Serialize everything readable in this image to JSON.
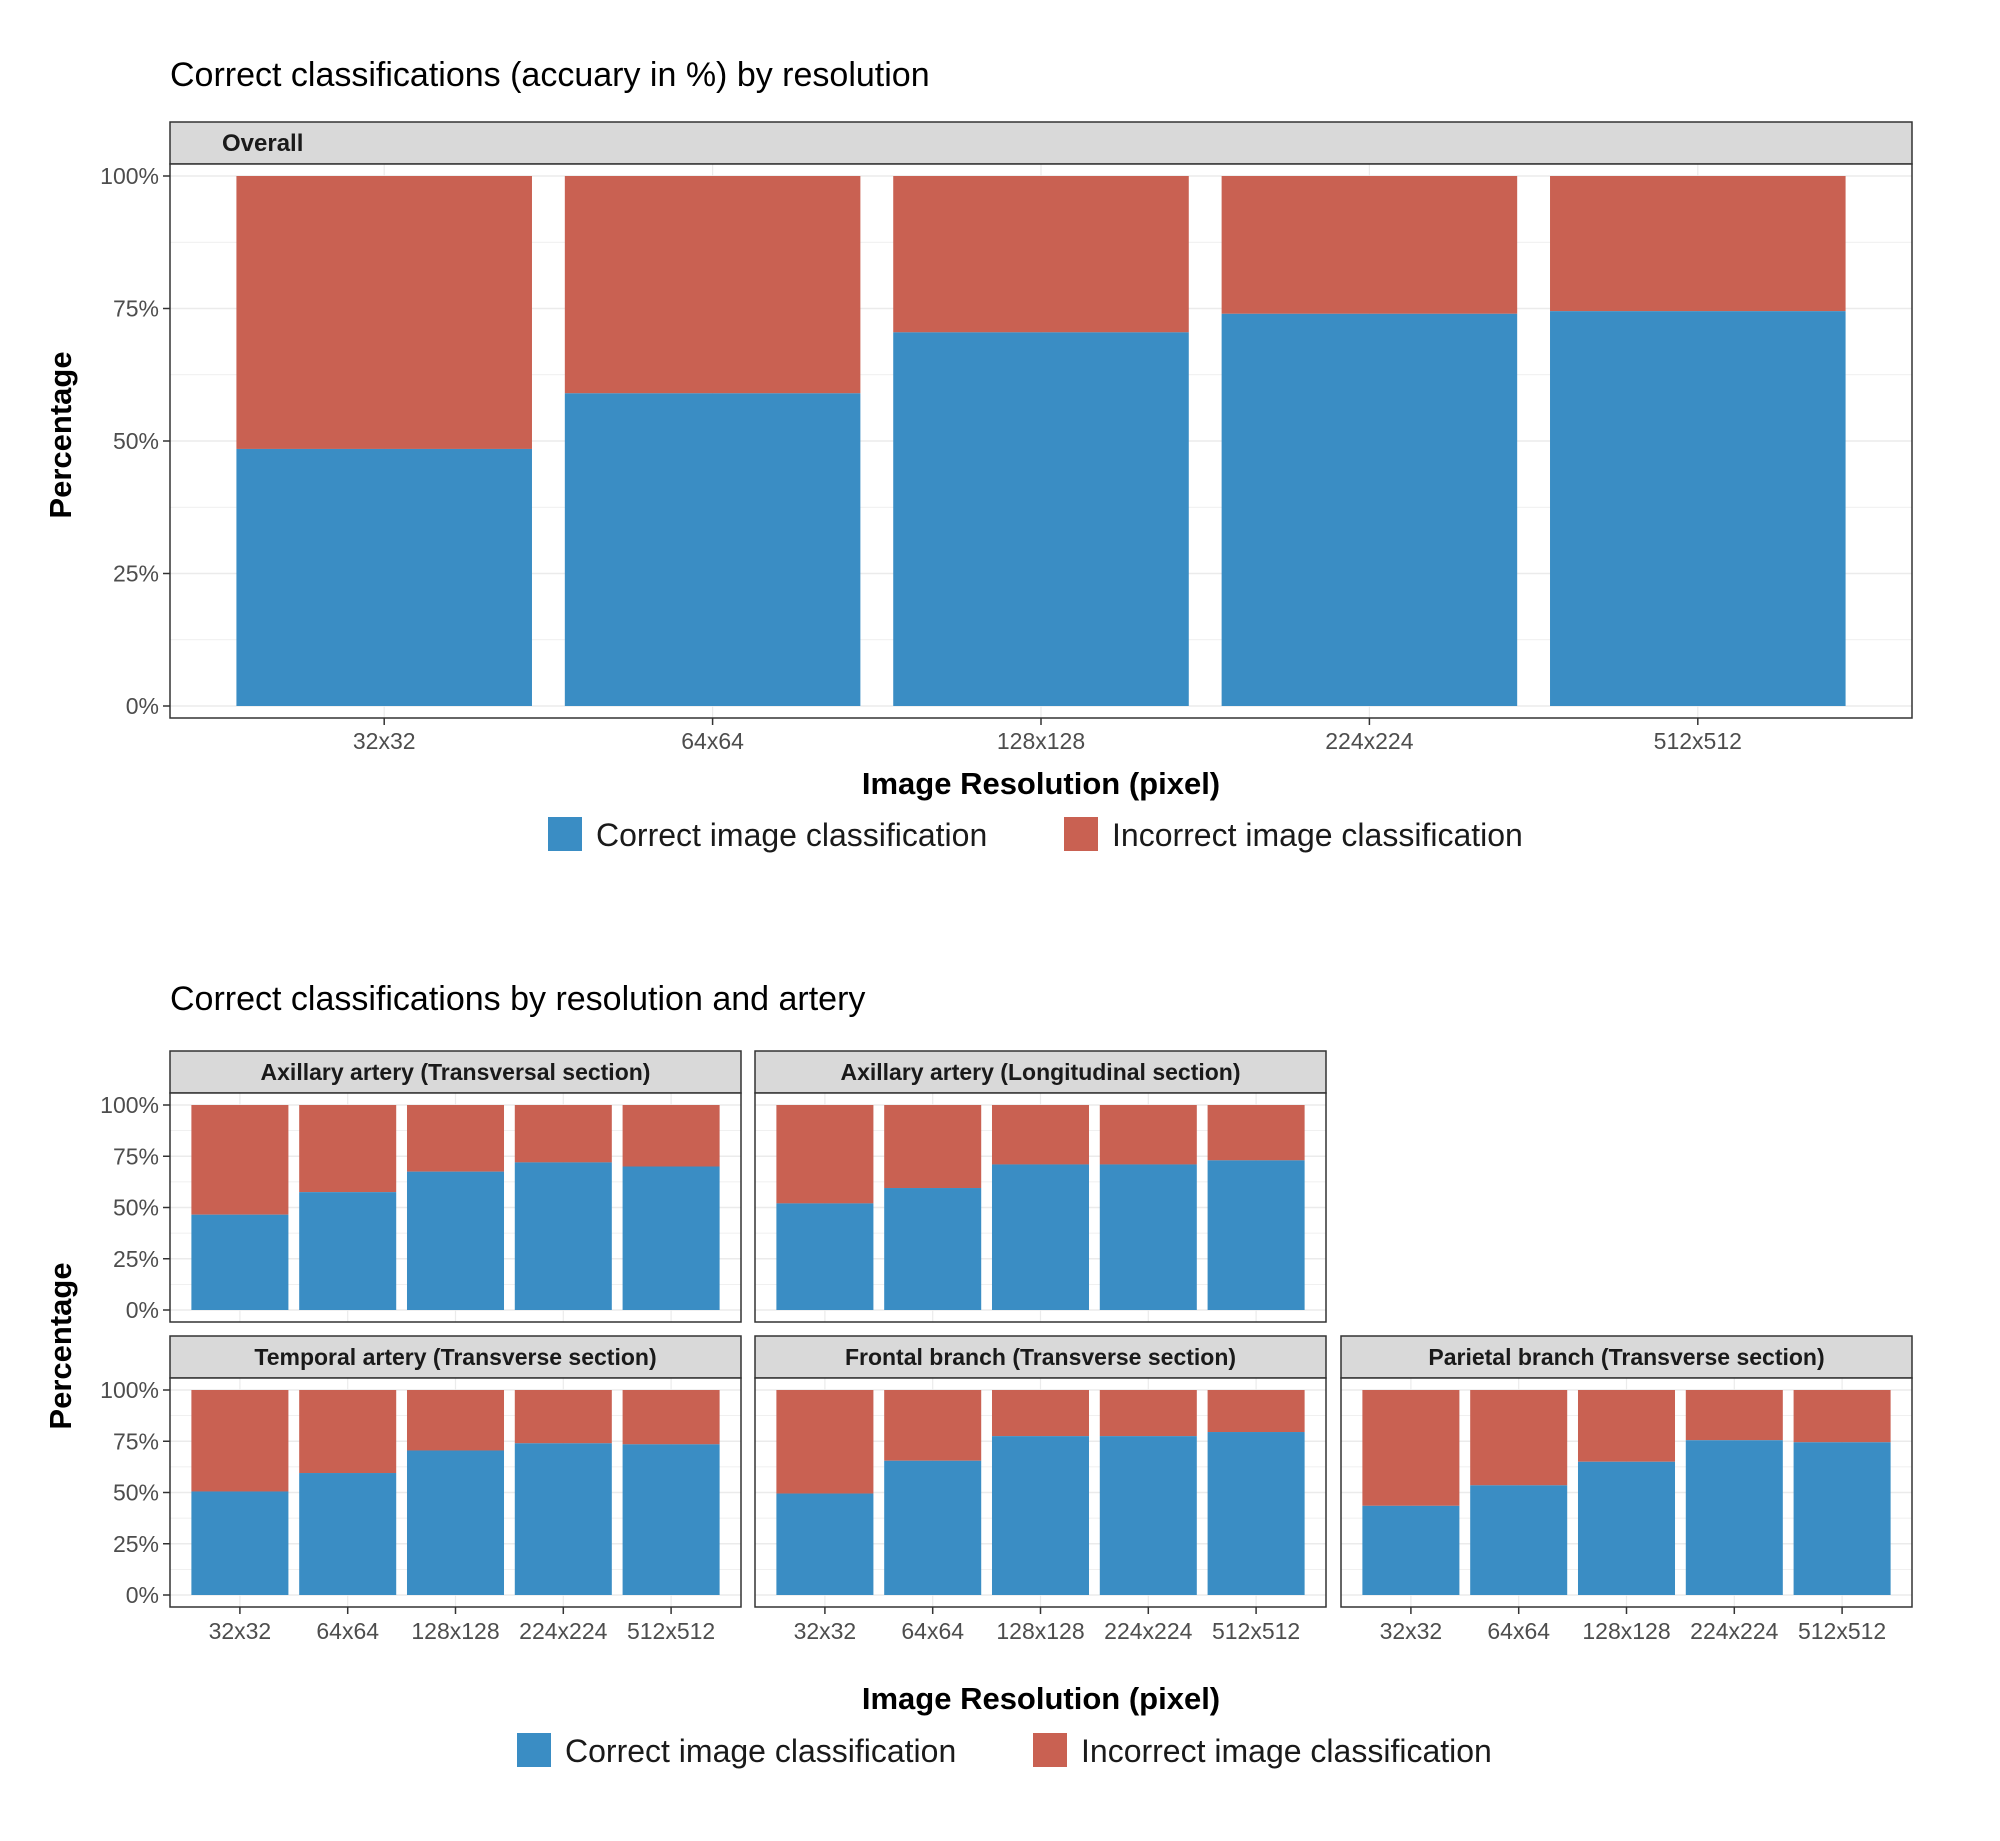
{
  "colors": {
    "correct": "#3a8dc4",
    "incorrect": "#c96152",
    "strip": "#d9d9d9",
    "grid": "#ebebeb"
  },
  "legend": {
    "correct": "Correct image classification",
    "incorrect": "Incorrect image classification"
  },
  "y_ticks": [
    "0%",
    "25%",
    "50%",
    "75%",
    "100%"
  ],
  "chart_data": [
    {
      "type": "bar",
      "stacked": true,
      "title": "Correct classifications (accuary in %) by resolution",
      "xlabel": "Image Resolution (pixel)",
      "ylabel": "Percentage",
      "ylim": [
        0,
        100
      ],
      "categories": [
        "32x32",
        "64x64",
        "128x128",
        "224x224",
        "512x512"
      ],
      "legend_position": "bottom",
      "panels": [
        {
          "name": "Overall",
          "correct": [
            48.5,
            59,
            70.5,
            74,
            74.5
          ]
        }
      ]
    },
    {
      "type": "bar",
      "stacked": true,
      "title": "Correct classifications by resolution and artery",
      "xlabel": "Image Resolution (pixel)",
      "ylabel": "Percentage",
      "ylim": [
        0,
        100
      ],
      "categories": [
        "32x32",
        "64x64",
        "128x128",
        "224x224",
        "512x512"
      ],
      "legend_position": "bottom",
      "panels": [
        {
          "name": "Axillary artery (Transversal section)",
          "correct": [
            46.5,
            57.5,
            67.5,
            72,
            70
          ]
        },
        {
          "name": "Axillary artery (Longitudinal section)",
          "correct": [
            52,
            59.5,
            71,
            71,
            73
          ]
        },
        {
          "name": "Temporal artery (Transverse section)",
          "correct": [
            50.5,
            59.5,
            70.5,
            74,
            73.5
          ]
        },
        {
          "name": "Frontal branch (Transverse section)",
          "correct": [
            49.5,
            65.5,
            77.5,
            77.5,
            79.5
          ]
        },
        {
          "name": "Parietal branch (Transverse section)",
          "correct": [
            43.5,
            53.5,
            65,
            75.5,
            74.5
          ]
        }
      ]
    }
  ]
}
